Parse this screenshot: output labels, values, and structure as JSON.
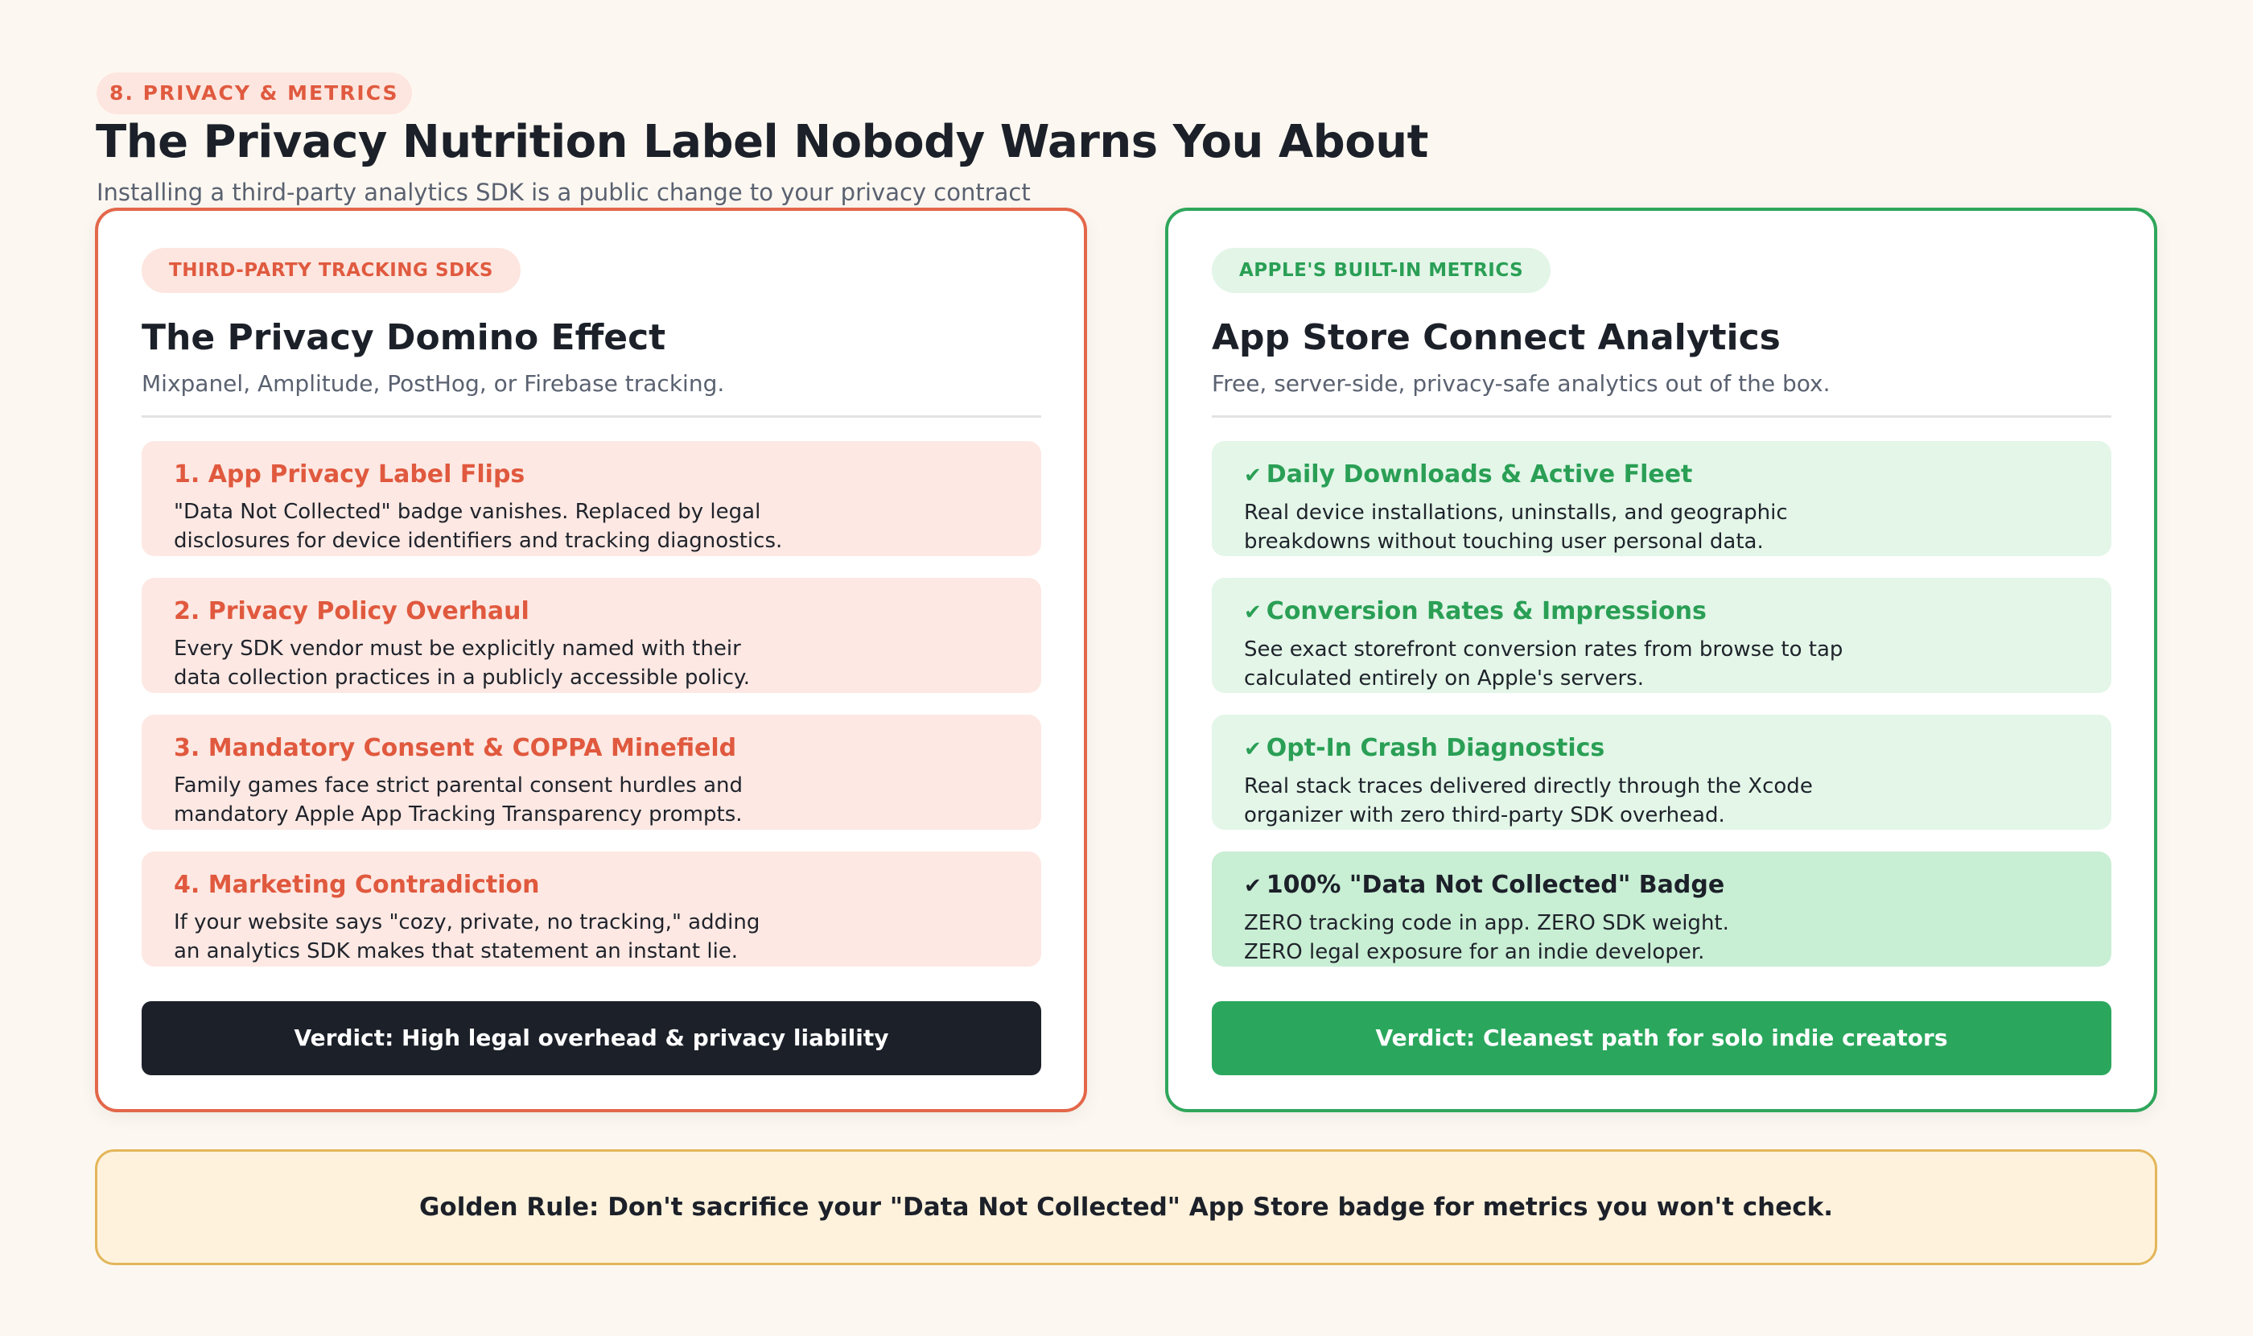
{
  "header": {
    "section_tag": "8. PRIVACY & METRICS",
    "title": "The Privacy Nutrition Label Nobody Warns You About",
    "subtitle": "Installing a third-party analytics SDK is a public change to your privacy contract"
  },
  "left_card": {
    "pill": "THIRD-PARTY TRACKING SDKS",
    "title": "The Privacy Domino Effect",
    "subtitle": "Mixpanel, Amplitude, PostHog, or Firebase tracking.",
    "accent_color": "#e3674a",
    "items": [
      {
        "heading": "1. App Privacy Label Flips",
        "line1": "\"Data Not Collected\" badge vanishes. Replaced by legal",
        "line2": "disclosures for device identifiers and tracking diagnostics."
      },
      {
        "heading": "2. Privacy Policy Overhaul",
        "line1": "Every SDK vendor must be explicitly named with their",
        "line2": "data collection practices in a publicly accessible policy."
      },
      {
        "heading": "3. Mandatory Consent & COPPA Minefield",
        "line1": "Family games face strict parental consent hurdles and",
        "line2": "mandatory Apple App Tracking Transparency prompts."
      },
      {
        "heading": "4. Marketing Contradiction",
        "line1": "If your website says \"cozy, private, no tracking,\" adding",
        "line2": "an analytics SDK makes that statement an instant lie."
      }
    ],
    "verdict": "Verdict: High legal overhead & privacy liability"
  },
  "right_card": {
    "pill": "APPLE'S BUILT-IN METRICS",
    "title": "App Store Connect Analytics",
    "subtitle": "Free, server-side, privacy-safe analytics out of the box.",
    "accent_color": "#2fa65b",
    "check_icon": "check-icon",
    "items": [
      {
        "check": "✔",
        "heading": "Daily Downloads & Active Fleet",
        "line1": "Real device installations, uninstalls, and geographic",
        "line2": "breakdowns without touching user personal data."
      },
      {
        "check": "✔",
        "heading": "Conversion Rates & Impressions",
        "line1": "See exact storefront conversion rates from browse to tap",
        "line2": "calculated entirely on Apple's servers."
      },
      {
        "check": "✔",
        "heading": "Opt-In Crash Diagnostics",
        "line1": "Real stack traces delivered directly through the Xcode",
        "line2": "organizer with zero third-party SDK overhead."
      },
      {
        "check": "✔",
        "heading": "100% \"Data Not Collected\" Badge",
        "line1": "ZERO tracking code in app. ZERO SDK weight.",
        "line2": "ZERO legal exposure for an indie developer."
      }
    ],
    "verdict": "Verdict: Cleanest path for solo indie creators"
  },
  "footer": {
    "golden_rule": "Golden Rule: Don't sacrifice your \"Data Not Collected\" App Store badge for metrics you won't check."
  }
}
